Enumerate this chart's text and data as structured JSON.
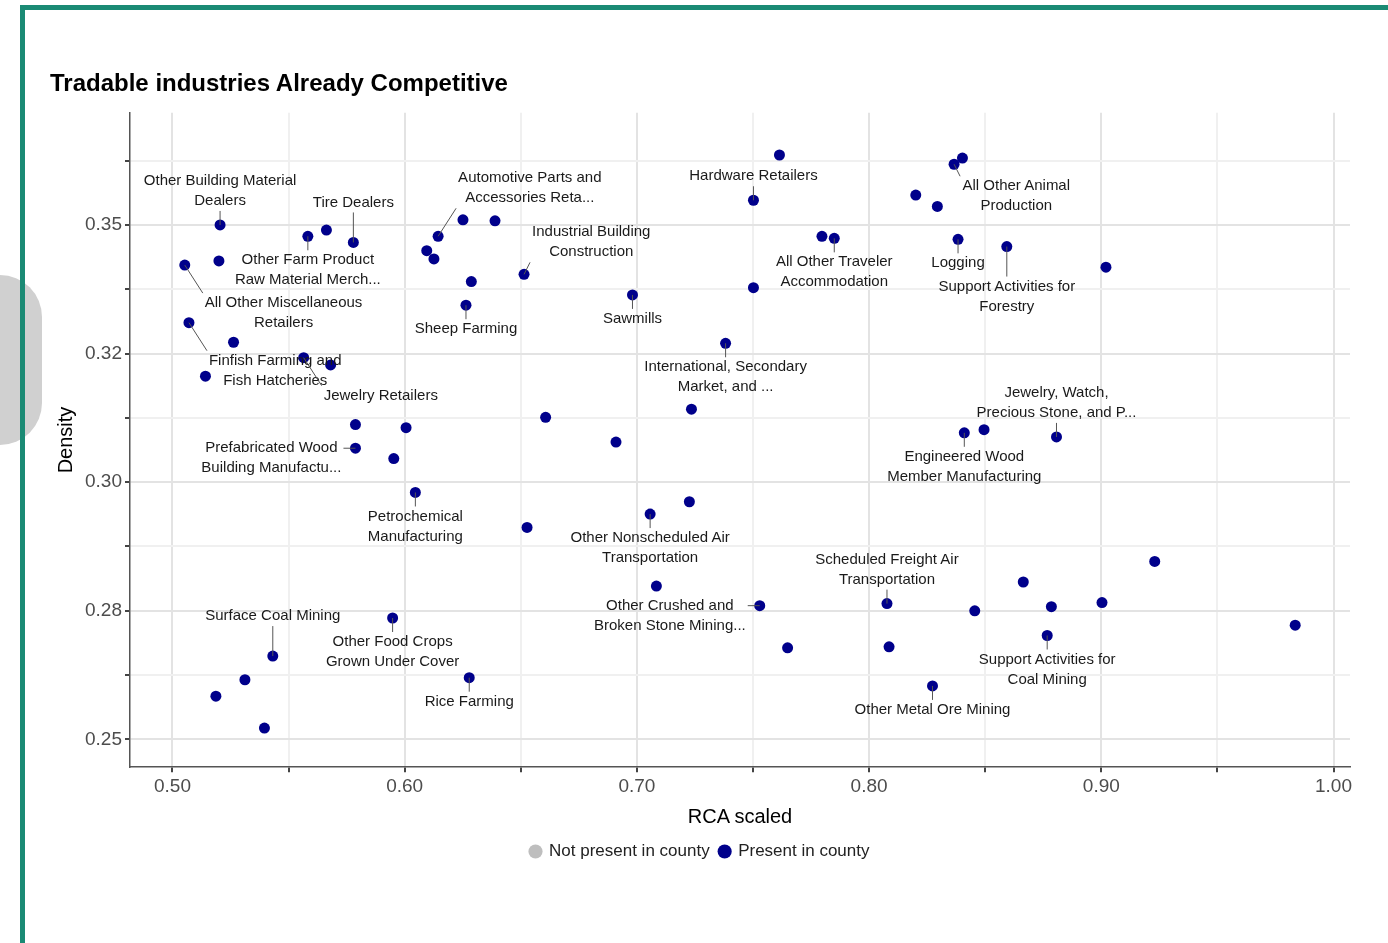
{
  "chart_data": {
    "type": "scatter",
    "title": "Tradable industries Already Competitive",
    "xlabel": "RCA scaled",
    "ylabel": "Density",
    "xlim": [
      0.4817,
      1.0071
    ],
    "xticks": [
      {
        "value": 0.5,
        "label": "0.50"
      },
      {
        "value": 0.55,
        "label": null
      },
      {
        "value": 0.6,
        "label": "0.60"
      },
      {
        "value": 0.65,
        "label": null
      },
      {
        "value": 0.7,
        "label": "0.70"
      },
      {
        "value": 0.75,
        "label": null
      },
      {
        "value": 0.8,
        "label": "0.80"
      },
      {
        "value": 0.85,
        "label": null
      },
      {
        "value": 0.9,
        "label": "0.90"
      },
      {
        "value": 0.95,
        "label": null
      },
      {
        "value": 1.0,
        "label": "1.00"
      }
    ],
    "ylim": [
      0.2446,
      0.3718
    ],
    "yticks": [
      {
        "value": 0.25,
        "label": "0.25"
      },
      {
        "value": 0.2625,
        "label": null
      },
      {
        "value": 0.275,
        "label": "0.28"
      },
      {
        "value": 0.2875,
        "label": null
      },
      {
        "value": 0.3,
        "label": "0.30"
      },
      {
        "value": 0.3125,
        "label": null
      },
      {
        "value": 0.325,
        "label": "0.32"
      },
      {
        "value": 0.3375,
        "label": null
      },
      {
        "value": 0.35,
        "label": "0.35"
      },
      {
        "value": 0.3625,
        "label": null
      }
    ],
    "grid": true,
    "legend": "bottom",
    "marker": "circle",
    "series": [
      {
        "name": "Not present in county",
        "color": "#bebebe"
      },
      {
        "name": "Present in county",
        "color": "#00008b",
        "x": [
          0.5205,
          0.5053,
          0.52,
          0.5583,
          0.5663,
          0.5779,
          0.6095,
          0.6126,
          0.6144,
          0.6251,
          0.6389,
          0.6287,
          0.6264,
          0.6514,
          0.5071,
          0.5263,
          0.5142,
          0.5565,
          0.5681,
          0.5788,
          0.5788,
          0.6006,
          0.5953,
          0.6046,
          0.6527,
          0.6607,
          0.691,
          0.7235,
          0.7057,
          0.7226,
          0.7084,
          0.5948,
          0.5432,
          0.5312,
          0.5187,
          0.5396,
          0.6278,
          0.7529,
          0.7649,
          0.8077,
          0.8086,
          0.8273,
          0.8455,
          0.8664,
          0.8785,
          0.8767,
          0.9003,
          0.923,
          0.9835,
          0.7614,
          0.7502,
          0.8402,
          0.8366,
          0.8201,
          0.8294,
          0.8383,
          0.7797,
          0.785,
          0.8593,
          0.902,
          0.7502,
          0.6981,
          0.7382,
          0.841,
          0.8495,
          0.8807
        ],
        "values": [
          0.35,
          0.3422,
          0.343,
          0.3478,
          0.349,
          0.3466,
          0.345,
          0.3434,
          0.3478,
          0.351,
          0.3508,
          0.339,
          0.3344,
          0.3404,
          0.331,
          0.3272,
          0.3206,
          0.3242,
          0.3228,
          0.3112,
          0.3066,
          0.3106,
          0.3046,
          0.298,
          0.2912,
          0.3126,
          0.3078,
          0.3142,
          0.2938,
          0.2962,
          0.2798,
          0.2736,
          0.2662,
          0.2616,
          0.2584,
          0.2522,
          0.262,
          0.276,
          0.2678,
          0.2764,
          0.268,
          0.2604,
          0.275,
          0.2806,
          0.2758,
          0.2702,
          0.2766,
          0.2846,
          0.2722,
          0.3636,
          0.3548,
          0.363,
          0.3618,
          0.3558,
          0.3536,
          0.3472,
          0.3478,
          0.3474,
          0.3458,
          0.3418,
          0.3378,
          0.3364,
          0.327,
          0.3096,
          0.3102,
          0.3088
        ]
      }
    ],
    "annotations": [
      {
        "text": "Other Building Material Dealers",
        "x": 0.5205,
        "y": 0.35
      },
      {
        "text": "All Other Miscellaneous Retailers",
        "x": 0.5053,
        "y": 0.3422
      },
      {
        "text": "Other Farm Product Raw Material Merch...",
        "x": 0.5583,
        "y": 0.3478
      },
      {
        "text": "Tire Dealers",
        "x": 0.5779,
        "y": 0.3466
      },
      {
        "text": "Automotive Parts and Accessories Reta...",
        "x": 0.6144,
        "y": 0.3478
      },
      {
        "text": "Sheep Farming",
        "x": 0.6264,
        "y": 0.3344
      },
      {
        "text": "Industrial Building Construction",
        "x": 0.6514,
        "y": 0.3404
      },
      {
        "text": "Finfish Farming and Fish Hatcheries",
        "x": 0.5071,
        "y": 0.331
      },
      {
        "text": "Jewelry Retailers",
        "x": 0.5565,
        "y": 0.3242
      },
      {
        "text": "Prefabricated Wood Building Manufactu...",
        "x": 0.5788,
        "y": 0.3066
      },
      {
        "text": "Petrochemical Manufacturing",
        "x": 0.6046,
        "y": 0.298
      },
      {
        "text": "Other Nonscheduled Air Transportation",
        "x": 0.7057,
        "y": 0.2938
      },
      {
        "text": "Other Food Crops Grown Under Cover",
        "x": 0.5948,
        "y": 0.2736
      },
      {
        "text": "Surface Coal Mining",
        "x": 0.5432,
        "y": 0.2662
      },
      {
        "text": "Rice Farming",
        "x": 0.6278,
        "y": 0.262
      },
      {
        "text": "Other Crushed and Broken Stone Mining...",
        "x": 0.7529,
        "y": 0.276
      },
      {
        "text": "Scheduled Freight Air Transportation",
        "x": 0.8077,
        "y": 0.2764
      },
      {
        "text": "Other Metal Ore Mining",
        "x": 0.8273,
        "y": 0.2604
      },
      {
        "text": "Support Activities for Coal Mining",
        "x": 0.8767,
        "y": 0.2702
      },
      {
        "text": "Hardware Retailers",
        "x": 0.7502,
        "y": 0.3548
      },
      {
        "text": "All Other Animal Production",
        "x": 0.8366,
        "y": 0.3618
      },
      {
        "text": "Logging",
        "x": 0.8383,
        "y": 0.3472
      },
      {
        "text": "All Other Traveler Accommodation",
        "x": 0.785,
        "y": 0.3474
      },
      {
        "text": "Support Activities for Forestry",
        "x": 0.8593,
        "y": 0.3458
      },
      {
        "text": "Sawmills",
        "x": 0.6981,
        "y": 0.3364
      },
      {
        "text": "International, Secondary Market, and ...",
        "x": 0.7382,
        "y": 0.327
      },
      {
        "text": "Engineered Wood Member Manufacturing",
        "x": 0.841,
        "y": 0.3096
      },
      {
        "text": "Jewelry, Watch, Precious Stone, and P...",
        "x": 0.8807,
        "y": 0.3088
      }
    ]
  }
}
